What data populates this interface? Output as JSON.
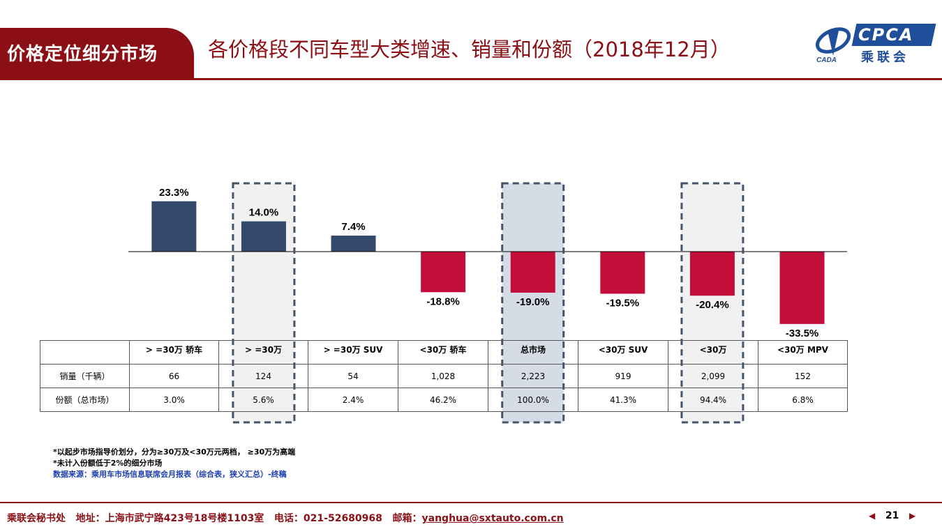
{
  "header": {
    "section_label": "价格定位细分市场",
    "title": "各价格段不同车型大类增速、销量和份额（2018年12月）"
  },
  "logo": {
    "cpca_text": "CPCA",
    "cn_text": "乘联会",
    "emblem_text": "CADA"
  },
  "chart_data": {
    "type": "bar",
    "categories": [
      ">=30万 轿车",
      ">=30万",
      ">=30万 SUV",
      "<30万 轿车",
      "总市场",
      "<30万 SUV",
      "<30万",
      "<30万 MPV"
    ],
    "values": [
      23.3,
      14.0,
      7.4,
      -18.8,
      -19.0,
      -19.5,
      -20.4,
      -33.5
    ],
    "value_labels": [
      "23.3%",
      "14.0%",
      "7.4%",
      "-18.8%",
      "-19.0%",
      "-19.5%",
      "-20.4%",
      "-33.5%"
    ],
    "highlighted_categories": [
      ">=30万",
      "总市场",
      "<30万"
    ],
    "colors": {
      "positive": "#344a6b",
      "negative": "#c20e39",
      "highlight_box": "#f1f1f1",
      "highlight_total": "#d6dce5",
      "highlight_border": "#44546a"
    },
    "title": "",
    "xlabel": "",
    "ylabel": "",
    "grid": false,
    "legend": false
  },
  "table": {
    "columns": [
      "> =30万 轿车",
      "> =30万",
      "> =30万 SUV",
      "<30万 轿车",
      "总市场",
      "<30万 SUV",
      "<30万",
      "<30万 MPV"
    ],
    "rows": [
      {
        "label": "销量（千辆）",
        "values": [
          "66",
          "124",
          "54",
          "1,028",
          "2,223",
          "919",
          "2,099",
          "152"
        ]
      },
      {
        "label": "份额（总市场）",
        "values": [
          "3.0%",
          "5.6%",
          "2.4%",
          "46.2%",
          "100.0%",
          "41.3%",
          "94.4%",
          "6.8%"
        ]
      }
    ]
  },
  "notes": {
    "line1": "*以起步市场指导价划分，分为≥30万及<30万元两档， ≥30万为高端",
    "line2": "*未计入份额低于2%的细分市场",
    "source": "数据来源：乘用车市场信息联席会月报表（综合表，狭义汇总）-终稿"
  },
  "footer": {
    "org": "乘联会秘书处",
    "address": "地址：上海市武宁路423号18号楼1103室",
    "phone": "电话：021-52680968",
    "email_label": "邮箱：",
    "email": "yanghua@sxtauto.com.cn",
    "page": "21"
  }
}
